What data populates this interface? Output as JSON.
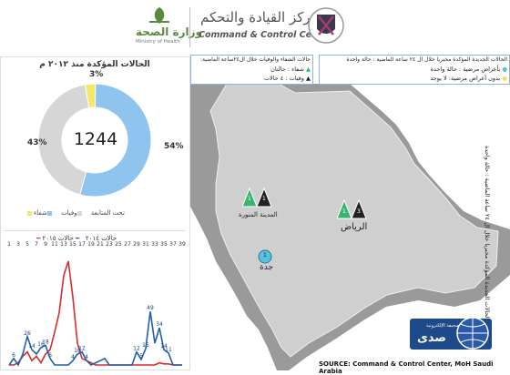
{
  "header": {
    "moh_ar": "وزارة الصحة",
    "moh_en": "Ministry of Health",
    "ccc_ar": "مركز القيادة والتحكم",
    "ccc_en": "Command & Control Center"
  },
  "donut": {
    "title": "الحالات المؤكدة منذ ٢٠١٢ م",
    "center_value": "1244",
    "slices": [
      {
        "label": "شفاء",
        "percent": 54,
        "percent_text": "54%",
        "color": "#8fc4ef"
      },
      {
        "label": "وفيات",
        "percent": 43,
        "percent_text": "43%",
        "color": "#d6d6d6"
      },
      {
        "label": "تحت المتابعة",
        "percent": 3,
        "percent_text": "3%",
        "color": "#f5e76b"
      }
    ]
  },
  "line_chart": {
    "series_2015": "حالات ٢٠١٥",
    "series_2014": "حالات ٢٠١٤",
    "week_ticks": [
      "1",
      "3",
      "5",
      "7",
      "9",
      "11",
      "13",
      "15",
      "17",
      "19",
      "21",
      "23",
      "25",
      "27",
      "29",
      "31",
      "33",
      "35",
      "37",
      "39"
    ]
  },
  "chart_data": {
    "type": "line",
    "x": [
      1,
      2,
      3,
      4,
      5,
      6,
      7,
      8,
      9,
      10,
      11,
      12,
      13,
      14,
      15,
      16,
      17,
      18,
      19,
      20,
      21,
      22,
      23,
      24,
      25,
      26,
      27,
      28,
      29,
      30,
      31,
      32,
      33,
      34,
      35,
      36,
      37,
      38,
      39
    ],
    "series": [
      {
        "name": "حالات ٢٠١٥",
        "color": "#1f5fb0",
        "values": [
          0,
          6,
          0,
          10,
          26,
          14,
          10,
          16,
          18,
          6,
          0,
          0,
          0,
          0,
          4,
          10,
          12,
          4,
          0,
          2,
          4,
          6,
          0,
          0,
          0,
          0,
          0,
          0,
          12,
          5,
          15,
          49,
          20,
          34,
          14,
          11,
          0,
          0,
          0
        ],
        "labels": [
          null,
          "6",
          null,
          null,
          "26",
          "14",
          null,
          "16",
          "18",
          "6",
          null,
          null,
          null,
          null,
          "4",
          "10",
          "12",
          "4",
          null,
          null,
          null,
          null,
          null,
          null,
          null,
          null,
          null,
          null,
          "12",
          "5",
          "15",
          "49",
          null,
          "34",
          "14",
          "11",
          null,
          null,
          null
        ]
      },
      {
        "name": "حالات ٢٠١٤",
        "color": "#d92b2b",
        "values": [
          0,
          0,
          2,
          8,
          12,
          4,
          8,
          2,
          10,
          14,
          30,
          48,
          82,
          95,
          62,
          20,
          6,
          4,
          2,
          0,
          0,
          0,
          0,
          0,
          0,
          0,
          0,
          0,
          0,
          0,
          0,
          0,
          0,
          2,
          1,
          1,
          0,
          0,
          0
        ]
      }
    ],
    "ylim": [
      0,
      100
    ]
  },
  "map": {
    "box_recovery": {
      "title": "حالات الشفاء والوفيات خلال ال٢٤ساعة الماضية:",
      "recovery": "شفاء : حالتان",
      "deaths": "وفيات : ٤ حالات"
    },
    "box_new": {
      "title": "الحالات الجديدة المؤكدة مخبريا خلال ال ٢٤ ساعة الماضية : حالة واحدة",
      "symptoms": "بأعراض مرضية : حالة واحدة",
      "no_symptoms": "بدون أعراض مرضية: لا يوجد"
    },
    "side_note": "الحالات الجديدة المؤكدة مخبريا خلال ال ٢٤ ساعة الماضية : حالة واحدة",
    "cities": [
      {
        "name": "الرياض",
        "recovered": "1",
        "deaths": "3"
      },
      {
        "name": "المدينة المنورة",
        "recovered": "1",
        "deaths": "1"
      },
      {
        "name": "جدة",
        "new_cases": "1"
      }
    ],
    "source": "SOURCE: Command & Control Center, MoH Saudi Arabia",
    "sada_brand": "صدى",
    "sada_sub": "صحيفة الإلكترونية"
  },
  "colors": {
    "recovery": "#3cb371",
    "death": "#222222",
    "new": "#5bc0de"
  }
}
